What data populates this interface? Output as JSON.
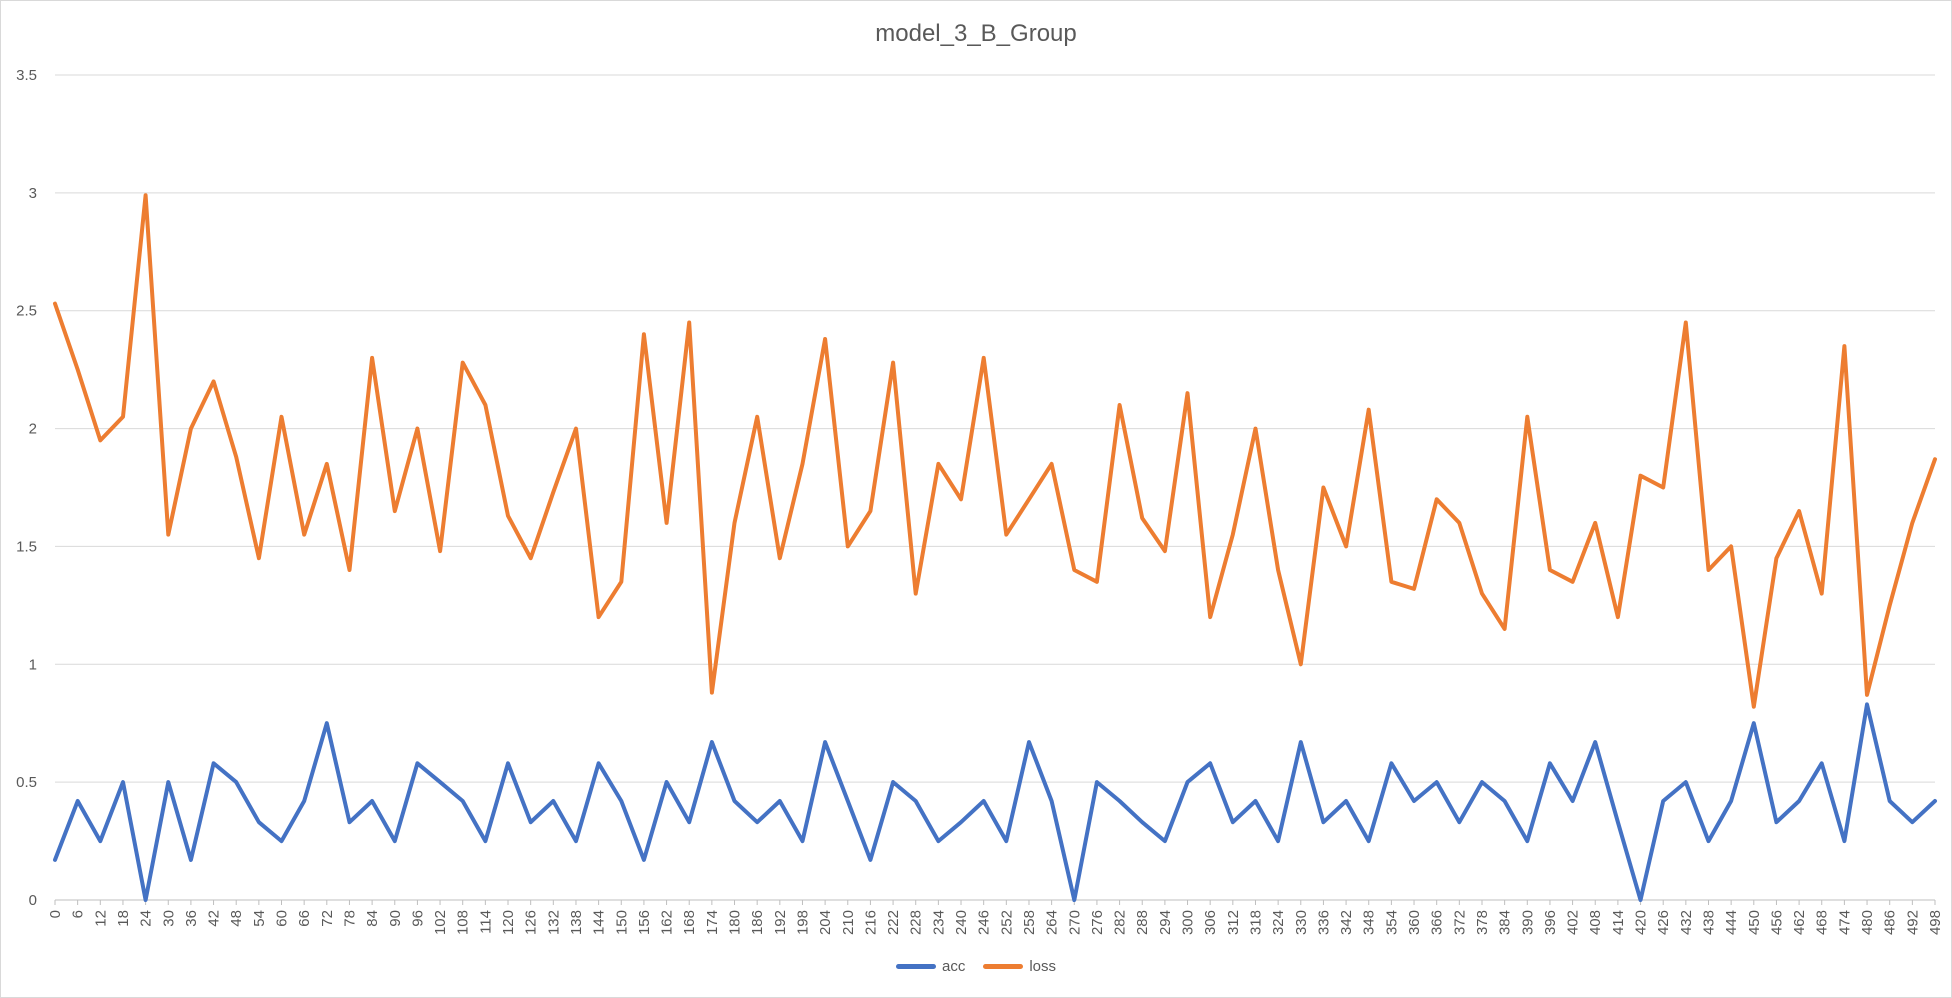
{
  "chart_data": {
    "type": "line",
    "title": "model_3_B_Group",
    "xlabel": "",
    "ylabel": "",
    "ylim": [
      0,
      3.5
    ],
    "yticks": [
      "0",
      "0.5",
      "1",
      "1.5",
      "2",
      "2.5",
      "3",
      "3.5"
    ],
    "xlim": [
      0,
      498
    ],
    "xtick_step": 6,
    "grid": true,
    "legend_position": "bottom",
    "x": [
      0,
      6,
      12,
      18,
      24,
      30,
      36,
      42,
      48,
      54,
      60,
      66,
      72,
      78,
      84,
      90,
      96,
      102,
      108,
      114,
      120,
      126,
      132,
      138,
      144,
      150,
      156,
      162,
      168,
      174,
      180,
      186,
      192,
      198,
      204,
      210,
      216,
      222,
      228,
      234,
      240,
      246,
      252,
      258,
      264,
      270,
      276,
      282,
      288,
      294,
      300,
      306,
      312,
      318,
      324,
      330,
      336,
      342,
      348,
      354,
      360,
      366,
      372,
      378,
      384,
      390,
      396,
      402,
      408,
      414,
      420,
      426,
      432,
      438,
      444,
      450,
      456,
      462,
      468,
      474,
      480,
      486,
      492,
      498
    ],
    "series": [
      {
        "name": "acc",
        "color": "#4472C4",
        "values": [
          0.17,
          0.42,
          0.25,
          0.5,
          0.0,
          0.5,
          0.17,
          0.58,
          0.5,
          0.33,
          0.25,
          0.42,
          0.75,
          0.33,
          0.42,
          0.25,
          0.58,
          0.5,
          0.42,
          0.25,
          0.58,
          0.33,
          0.42,
          0.25,
          0.58,
          0.42,
          0.17,
          0.5,
          0.33,
          0.67,
          0.42,
          0.33,
          0.42,
          0.25,
          0.67,
          0.42,
          0.17,
          0.5,
          0.42,
          0.25,
          0.33,
          0.42,
          0.25,
          0.67,
          0.42,
          0.0,
          0.5,
          0.42,
          0.33,
          0.25,
          0.5,
          0.58,
          0.33,
          0.42,
          0.25,
          0.67,
          0.33,
          0.42,
          0.25,
          0.58,
          0.42,
          0.5,
          0.33,
          0.5,
          0.42,
          0.25,
          0.58,
          0.42,
          0.67,
          0.33,
          0.0,
          0.42,
          0.5,
          0.25,
          0.42,
          0.75,
          0.33,
          0.42,
          0.58,
          0.25,
          0.83,
          0.42,
          0.33,
          0.42
        ]
      },
      {
        "name": "loss",
        "color": "#ED7D31",
        "values": [
          2.53,
          2.25,
          1.95,
          2.05,
          2.99,
          1.55,
          2.0,
          2.2,
          1.88,
          1.45,
          2.05,
          1.55,
          1.85,
          1.4,
          2.3,
          1.65,
          2.0,
          1.48,
          2.28,
          2.1,
          1.63,
          1.45,
          1.73,
          2.0,
          1.2,
          1.35,
          2.4,
          1.6,
          2.45,
          0.88,
          1.6,
          2.05,
          1.45,
          1.85,
          2.38,
          1.5,
          1.65,
          2.28,
          1.3,
          1.85,
          1.7,
          2.3,
          1.55,
          1.7,
          1.85,
          1.4,
          1.35,
          2.1,
          1.62,
          1.48,
          2.15,
          1.2,
          1.55,
          2.0,
          1.4,
          1.0,
          1.75,
          1.5,
          2.08,
          1.35,
          1.32,
          1.7,
          1.6,
          1.3,
          1.15,
          2.05,
          1.4,
          1.35,
          1.6,
          1.2,
          1.8,
          1.75,
          2.45,
          1.4,
          1.5,
          0.82,
          1.45,
          1.65,
          1.3,
          2.35,
          0.87,
          1.25,
          1.6,
          1.87
        ]
      }
    ]
  }
}
